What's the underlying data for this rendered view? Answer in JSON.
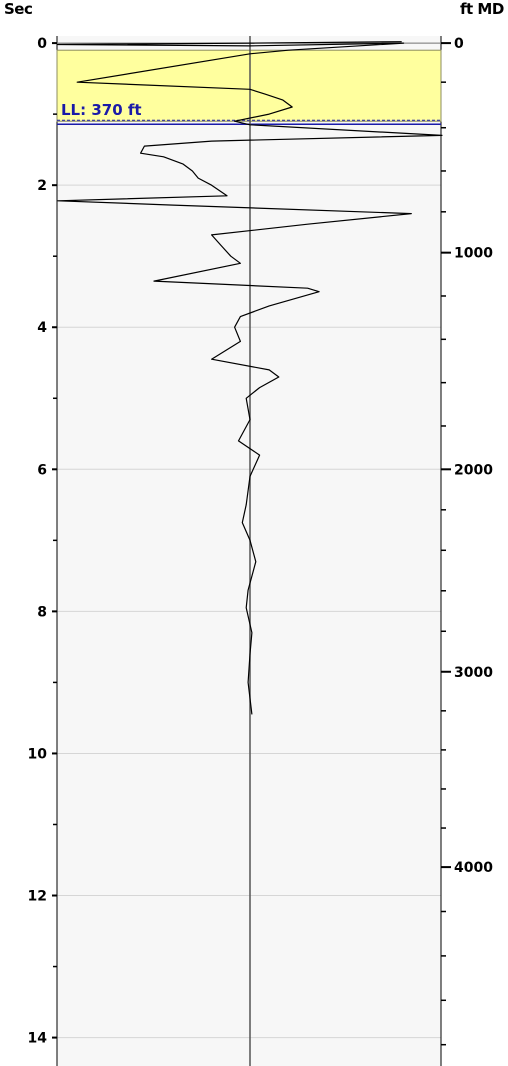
{
  "header": {
    "left_axis_label": "Sec",
    "right_axis_label": "ft MD"
  },
  "chart_data": {
    "type": "line",
    "title": "",
    "left_axis": {
      "label": "Sec",
      "range": [
        -0.1,
        14.4
      ],
      "major_ticks": [
        0,
        2,
        4,
        6,
        8,
        10,
        12,
        14
      ],
      "tick_labels": [
        "0",
        "2",
        "4",
        "6",
        "8",
        "10",
        "12",
        "14"
      ],
      "minor_ticks": [
        1,
        3,
        5,
        7,
        9,
        11,
        13
      ],
      "grid": true
    },
    "right_axis": {
      "label": "ft MD",
      "major_ticks": [
        0,
        1000,
        2000,
        3000,
        4000
      ],
      "tick_labels": [
        "0",
        "1000",
        "2000",
        "3000",
        "4000"
      ],
      "minor_step": 200,
      "max_minor": 4800
    },
    "depth_sec_map": [
      [
        0,
        0
      ],
      [
        200,
        0.55
      ],
      [
        370,
        1.1
      ],
      [
        600,
        1.8
      ],
      [
        1000,
        2.95
      ],
      [
        2000,
        6.0
      ],
      [
        3000,
        8.85
      ],
      [
        4000,
        11.6
      ],
      [
        4800,
        14.1
      ]
    ],
    "highlight_band": {
      "from_sec": 0.1,
      "to_sec": 1.1,
      "color": "#ffff9e"
    },
    "level_line": {
      "label": "LL: 370 ft",
      "depth_ft": 370,
      "sec": 1.1,
      "color": "#1a1aa8"
    },
    "center_line_value": 0,
    "x_range": [
      -1,
      1
    ],
    "series": [
      {
        "color": "#000000",
        "points": [
          [
            0.79,
            -0.02
          ],
          [
            0.0,
            0.0
          ],
          [
            -1.0,
            0.02
          ],
          [
            0.0,
            0.04
          ],
          [
            0.8,
            0.0
          ],
          [
            0.2,
            0.1
          ],
          [
            0.0,
            0.15
          ],
          [
            -0.9,
            0.55
          ],
          [
            0.0,
            0.65
          ],
          [
            0.08,
            0.72
          ],
          [
            0.17,
            0.8
          ],
          [
            0.22,
            0.9
          ],
          [
            0.1,
            1.0
          ],
          [
            -0.08,
            1.1
          ],
          [
            0.0,
            1.15
          ],
          [
            1.0,
            1.3
          ],
          [
            -0.2,
            1.38
          ],
          [
            -0.55,
            1.45
          ],
          [
            -0.57,
            1.55
          ],
          [
            -0.45,
            1.6
          ],
          [
            -0.35,
            1.7
          ],
          [
            -0.3,
            1.8
          ],
          [
            -0.27,
            1.9
          ],
          [
            -0.2,
            2.0
          ],
          [
            -0.12,
            2.15
          ],
          [
            -1.0,
            2.22
          ],
          [
            -0.4,
            2.28
          ],
          [
            0.84,
            2.4
          ],
          [
            0.3,
            2.55
          ],
          [
            -0.2,
            2.7
          ],
          [
            -0.15,
            2.85
          ],
          [
            -0.1,
            3.0
          ],
          [
            -0.05,
            3.1
          ],
          [
            -0.5,
            3.35
          ],
          [
            0.3,
            3.45
          ],
          [
            0.36,
            3.5
          ],
          [
            0.1,
            3.7
          ],
          [
            -0.05,
            3.85
          ],
          [
            -0.08,
            4.0
          ],
          [
            -0.05,
            4.2
          ],
          [
            -0.2,
            4.45
          ],
          [
            0.1,
            4.6
          ],
          [
            0.15,
            4.7
          ],
          [
            0.05,
            4.85
          ],
          [
            -0.02,
            5.0
          ],
          [
            0.0,
            5.3
          ],
          [
            -0.06,
            5.6
          ],
          [
            0.05,
            5.8
          ],
          [
            0.0,
            6.1
          ],
          [
            -0.02,
            6.5
          ],
          [
            -0.04,
            6.75
          ],
          [
            0.0,
            7.0
          ],
          [
            0.03,
            7.3
          ],
          [
            -0.01,
            7.7
          ],
          [
            -0.02,
            7.95
          ],
          [
            0.01,
            8.3
          ],
          [
            0.0,
            8.6
          ],
          [
            -0.01,
            9.0
          ],
          [
            0.01,
            9.45
          ]
        ]
      }
    ]
  }
}
